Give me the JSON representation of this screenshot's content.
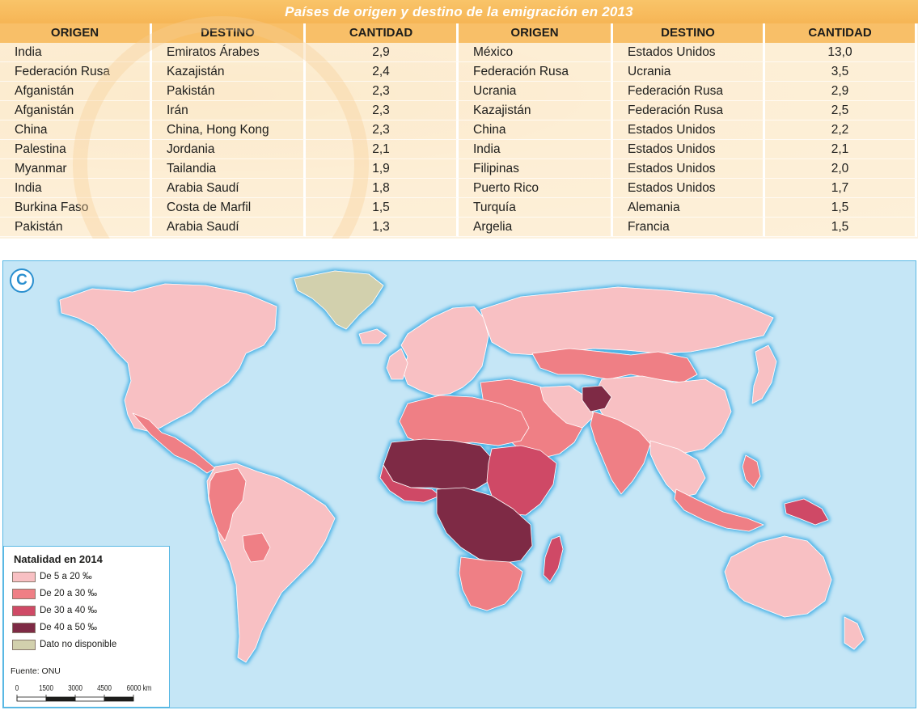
{
  "table": {
    "title": "Países de origen y destino de la emigración en 2013",
    "headers": [
      "ORIGEN",
      "DESTINO",
      "CANTIDAD"
    ],
    "left_rows": [
      [
        "India",
        "Emiratos Árabes",
        "2,9"
      ],
      [
        "Federación Rusa",
        "Kazajistán",
        "2,4"
      ],
      [
        "Afganistán",
        "Pakistán",
        "2,3"
      ],
      [
        "Afganistán",
        "Irán",
        "2,3"
      ],
      [
        "China",
        "China, Hong Kong",
        "2,3"
      ],
      [
        "Palestina",
        "Jordania",
        "2,1"
      ],
      [
        "Myanmar",
        "Tailandia",
        "1,9"
      ],
      [
        "India",
        "Arabia Saudí",
        "1,8"
      ],
      [
        "Burkina Faso",
        "Costa de Marfil",
        "1,5"
      ],
      [
        "Pakistán",
        "Arabia Saudí",
        "1,3"
      ]
    ],
    "right_rows": [
      [
        "México",
        "Estados Unidos",
        "13,0"
      ],
      [
        "Federación Rusa",
        "Ucrania",
        "3,5"
      ],
      [
        "Ucrania",
        "Federación Rusa",
        "2,9"
      ],
      [
        "Kazajistán",
        "Federación Rusa",
        "2,5"
      ],
      [
        "China",
        "Estados Unidos",
        "2,2"
      ],
      [
        "India",
        "Estados Unidos",
        "2,1"
      ],
      [
        "Filipinas",
        "Estados Unidos",
        "2,0"
      ],
      [
        "Puerto Rico",
        "Estados Unidos",
        "1,7"
      ],
      [
        "Turquía",
        "Alemania",
        "1,5"
      ],
      [
        "Argelia",
        "Francia",
        "1,5"
      ]
    ]
  },
  "map": {
    "badge": "C",
    "legend": {
      "title": "Natalidad en 2014",
      "items": [
        {
          "label": "De 5 a 20 ‰",
          "color": "#f8c0c3"
        },
        {
          "label": "De 20 a 30 ‰",
          "color": "#ef7f85"
        },
        {
          "label": "De 30 a 40 ‰",
          "color": "#cf4a66"
        },
        {
          "label": "De 40 a 50 ‰",
          "color": "#7e2a45"
        },
        {
          "label": "Dato no disponible",
          "color": "#d2d0ad"
        }
      ],
      "source": "Fuente: ONU",
      "scale_ticks": [
        "0",
        "1500",
        "3000",
        "4500",
        "6000 km"
      ]
    },
    "colors": {
      "ocean": "#c5e6f6",
      "coast_glow": "#5bbbe8",
      "border": "#ffffff"
    }
  }
}
